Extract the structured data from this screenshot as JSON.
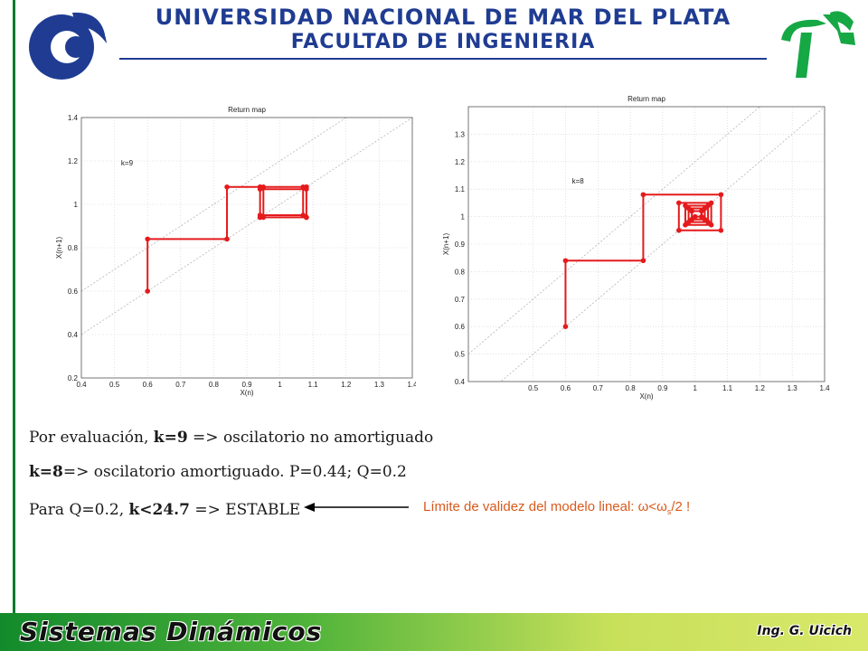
{
  "header": {
    "title_line1": "UNIVERSIDAD NACIONAL DE MAR DEL PLATA",
    "title_line2": "FACULTAD DE INGENIERIA"
  },
  "chart_data": [
    {
      "type": "line",
      "title": "Return map",
      "xlabel": "X(n)",
      "ylabel": "X(n+1)",
      "annotation": "k=9",
      "xlim": [
        0.4,
        1.4
      ],
      "ylim": [
        0.2,
        1.4
      ],
      "xticks": [
        "0.4",
        "0.5",
        "0.6",
        "0.7",
        "0.8",
        "0.9",
        "1",
        "1.1",
        "1.2",
        "1.3",
        "1.4"
      ],
      "yticks": [
        "0.2",
        "0.4",
        "0.6",
        "0.8",
        "1",
        "1.2",
        "1.4"
      ],
      "grid": true,
      "color": "#e41a1c",
      "reference_lines": [
        [
          0,
          0.2
        ],
        [
          0,
          0
        ]
      ],
      "x": [
        0.6,
        0.6,
        0.84,
        0.84,
        0.94,
        0.94,
        1.08,
        1.08,
        0.94,
        0.94,
        1.08,
        1.08,
        0.94,
        0.94,
        1.07,
        1.07,
        0.95,
        0.95,
        1.08,
        1.08
      ],
      "y": [
        0.6,
        0.84,
        0.84,
        1.08,
        1.08,
        0.94,
        0.94,
        1.08,
        1.08,
        0.94,
        0.94,
        1.07,
        1.07,
        0.95,
        0.95,
        1.08,
        1.08,
        0.94,
        0.94,
        1.08
      ]
    },
    {
      "type": "line",
      "title": "Return map",
      "xlabel": "X(n)",
      "ylabel": "X(n+1)",
      "annotation": "k=8",
      "xlim": [
        0.3,
        1.4
      ],
      "ylim": [
        0.4,
        1.4
      ],
      "xticks": [
        "0.5",
        "0.6",
        "0.7",
        "0.8",
        "0.9",
        "1",
        "1.1",
        "1.2",
        "1.3",
        "1.4"
      ],
      "yticks": [
        "0.4",
        "0.5",
        "0.6",
        "0.7",
        "0.8",
        "0.9",
        "1",
        "1.1",
        "1.2",
        "1.3"
      ],
      "grid": true,
      "color": "#e41a1c",
      "reference_lines": [
        [
          0,
          0.2
        ],
        [
          0,
          0
        ]
      ],
      "x": [
        0.6,
        0.6,
        0.84,
        0.84,
        1.08,
        1.08,
        0.95,
        0.95,
        1.05,
        1.05,
        0.97,
        0.97,
        1.04,
        1.04,
        0.98,
        0.98,
        1.03,
        1.03,
        0.99,
        0.99,
        1.02,
        1.02,
        1.0
      ],
      "y": [
        0.6,
        0.84,
        0.84,
        1.08,
        1.08,
        0.95,
        0.95,
        1.05,
        1.05,
        0.97,
        0.97,
        1.04,
        1.04,
        0.98,
        0.98,
        1.03,
        1.03,
        0.99,
        0.99,
        1.02,
        1.02,
        1.0,
        1.0
      ]
    }
  ],
  "body": {
    "line1_pre": "Por evaluación, ",
    "line1_bold": "k=9",
    "line1_post": " => oscilatorio no amortiguado",
    "line2_bold": "k=8",
    "line2_post": "=> oscilatorio amortiguado. P=0.44; Q=0.2",
    "line3_pre": "Para Q=0.2, ",
    "line3_bold": "k<24.7",
    "line3_post": " => ESTABLE",
    "note_text": "Límite de validez del modelo lineal: ω<ω",
    "note_sub": "s",
    "note_tail": "/2 !"
  },
  "footer": {
    "course": "Sistemas Dinámicos",
    "author": "Ing. G. Uicich"
  },
  "colors": {
    "header_blue": "#1f3c92",
    "left_rule_green": "#0b7a2c",
    "trajectory_red": "#e41a1c",
    "note_orange": "#d85a1c"
  }
}
